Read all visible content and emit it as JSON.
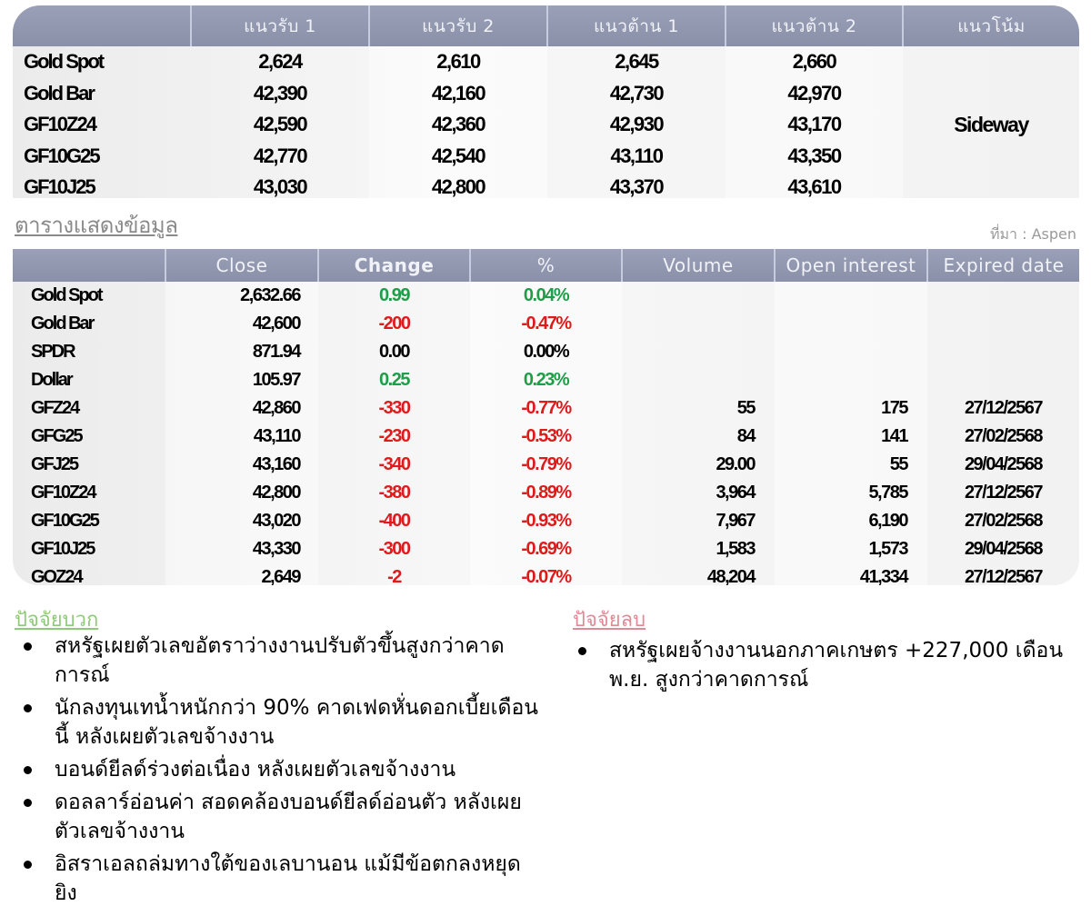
{
  "pivot_table": {
    "headers": [
      "",
      "แนวรับ 1",
      "แนวรับ 2",
      "แนวต้าน 1",
      "แนวต้าน 2",
      "แนวโน้ม"
    ],
    "rows": [
      {
        "name": "Gold Spot",
        "s1": "2,624",
        "s2": "2,610",
        "r1": "2,645",
        "r2": "2,660"
      },
      {
        "name": "Gold Bar",
        "s1": "42,390",
        "s2": "42,160",
        "r1": "42,730",
        "r2": "42,970"
      },
      {
        "name": "GF10Z24",
        "s1": "42,590",
        "s2": "42,360",
        "r1": "42,930",
        "r2": "43,170"
      },
      {
        "name": "GF10G25",
        "s1": "42,770",
        "s2": "42,540",
        "r1": "43,110",
        "r2": "43,350"
      },
      {
        "name": "GF10J25",
        "s1": "43,030",
        "s2": "42,800",
        "r1": "43,370",
        "r2": "43,610"
      }
    ],
    "trend": "Sideway"
  },
  "data_section": {
    "title": "ตารางแสดงข้อมูล",
    "source": "ที่มา : Aspen"
  },
  "data_table": {
    "headers": [
      "",
      "Close",
      "Change",
      "%",
      "Volume",
      "Open interest",
      "Expired date"
    ],
    "rows": [
      {
        "name": "Gold Spot",
        "close": "2,632.66",
        "change": "0.99",
        "pct": "0.04%",
        "volume": "",
        "oi": "",
        "expiry": "",
        "dir": "pos"
      },
      {
        "name": "Gold Bar",
        "close": "42,600",
        "change": "-200",
        "pct": "-0.47%",
        "volume": "",
        "oi": "",
        "expiry": "",
        "dir": "neg"
      },
      {
        "name": "SPDR",
        "close": "871.94",
        "change": "0.00",
        "pct": "0.00%",
        "volume": "",
        "oi": "",
        "expiry": "",
        "dir": "neu"
      },
      {
        "name": "Dollar",
        "close": "105.97",
        "change": "0.25",
        "pct": "0.23%",
        "volume": "",
        "oi": "",
        "expiry": "",
        "dir": "pos"
      },
      {
        "name": "GFZ24",
        "close": "42,860",
        "change": "-330",
        "pct": "-0.77%",
        "volume": "55",
        "oi": "175",
        "expiry": "27/12/2567",
        "dir": "neg"
      },
      {
        "name": "GFG25",
        "close": "43,110",
        "change": "-230",
        "pct": "-0.53%",
        "volume": "84",
        "oi": "141",
        "expiry": "27/02/2568",
        "dir": "neg"
      },
      {
        "name": "GFJ25",
        "close": "43,160",
        "change": "-340",
        "pct": "-0.79%",
        "volume": "29.00",
        "oi": "55",
        "expiry": "29/04/2568",
        "dir": "neg"
      },
      {
        "name": "GF10Z24",
        "close": "42,800",
        "change": "-380",
        "pct": "-0.89%",
        "volume": "3,964",
        "oi": "5,785",
        "expiry": "27/12/2567",
        "dir": "neg"
      },
      {
        "name": "GF10G25",
        "close": "43,020",
        "change": "-400",
        "pct": "-0.93%",
        "volume": "7,967",
        "oi": "6,190",
        "expiry": "27/02/2568",
        "dir": "neg"
      },
      {
        "name": "GF10J25",
        "close": "43,330",
        "change": "-300",
        "pct": "-0.69%",
        "volume": "1,583",
        "oi": "1,573",
        "expiry": "29/04/2568",
        "dir": "neg"
      },
      {
        "name": "GOZ24",
        "close": "2,649",
        "change": "-2",
        "pct": "-0.07%",
        "volume": "48,204",
        "oi": "41,334",
        "expiry": "27/12/2567",
        "dir": "neg"
      }
    ]
  },
  "positive_factors": {
    "title": "ปัจจัยบวก",
    "items": [
      "สหรัฐเผยตัวเลขอัตราว่างงานปรับตัวขึ้นสูงกว่าคาดการณ์",
      "นักลงทุนเทน้ำหนักกว่า 90% คาดเฟดหั่นดอกเบี้ยเดือนนี้ หลังเผยตัวเลขจ้างงาน",
      "บอนด์ยีลด์ร่วงต่อเนื่อง หลังเผยตัวเลขจ้างงาน",
      "ดอลลาร์อ่อนค่า สอดคล้องบอนด์ยีลด์อ่อนตัว หลังเผยตัวเลขจ้างงาน",
      "อิสราเอลถล่มทางใต้ของเลบานอน แม้มีข้อตกลงหยุดยิง"
    ]
  },
  "negative_factors": {
    "title": "ปัจจัยลบ",
    "items": [
      "สหรัฐเผยจ้างงานนอกภาคเกษตร +227,000 เดือนพ.ย. สูงกว่าคาดการณ์"
    ]
  },
  "colors": {
    "header_bg": "#8f95ad",
    "positive": "#1e9e48",
    "negative": "#e01a1a",
    "positive_title": "#8fca7a",
    "negative_title": "#e08a98"
  }
}
